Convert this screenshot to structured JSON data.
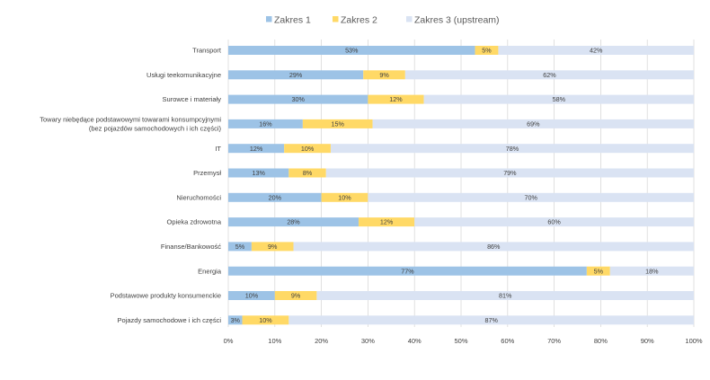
{
  "chart_data": {
    "type": "bar",
    "orientation": "horizontal",
    "stacked": true,
    "title": "",
    "xlabel": "",
    "ylabel": "",
    "xlim": [
      0,
      100
    ],
    "x_ticks": [
      "0%",
      "10%",
      "20%",
      "30%",
      "40%",
      "50%",
      "60%",
      "70%",
      "80%",
      "90%",
      "100%"
    ],
    "grid": "vertical",
    "legend_position": "top",
    "categories": [
      [
        "Transport"
      ],
      [
        "Usługi teekomunikacyjne"
      ],
      [
        "Surowce i materiały"
      ],
      [
        "Towary niebędące podstawowymi towarami konsumpcyjnymi",
        "(bez pojazdów samochodowych i ich części)"
      ],
      [
        "IT"
      ],
      [
        "Przemysł"
      ],
      [
        "Nieruchomości"
      ],
      [
        "Opieka zdrowotna"
      ],
      [
        "Finanse/Bankowość"
      ],
      [
        "Energia"
      ],
      [
        "Podstawowe produkty konsumenckie"
      ],
      [
        "Pojazdy samochodowe i ich części"
      ]
    ],
    "series": [
      {
        "name": "Zakres 1",
        "color": "#9dc3e6",
        "values": [
          53,
          29,
          30,
          16,
          12,
          13,
          20,
          28,
          5,
          77,
          10,
          3
        ]
      },
      {
        "name": "Zakres 2",
        "color": "#ffd966",
        "values": [
          5,
          9,
          12,
          15,
          10,
          8,
          10,
          12,
          9,
          5,
          9,
          10
        ]
      },
      {
        "name": "Zakres 3 (upstream)",
        "color": "#dae3f3",
        "values": [
          42,
          62,
          58,
          69,
          78,
          79,
          70,
          60,
          86,
          18,
          81,
          87
        ]
      }
    ]
  }
}
